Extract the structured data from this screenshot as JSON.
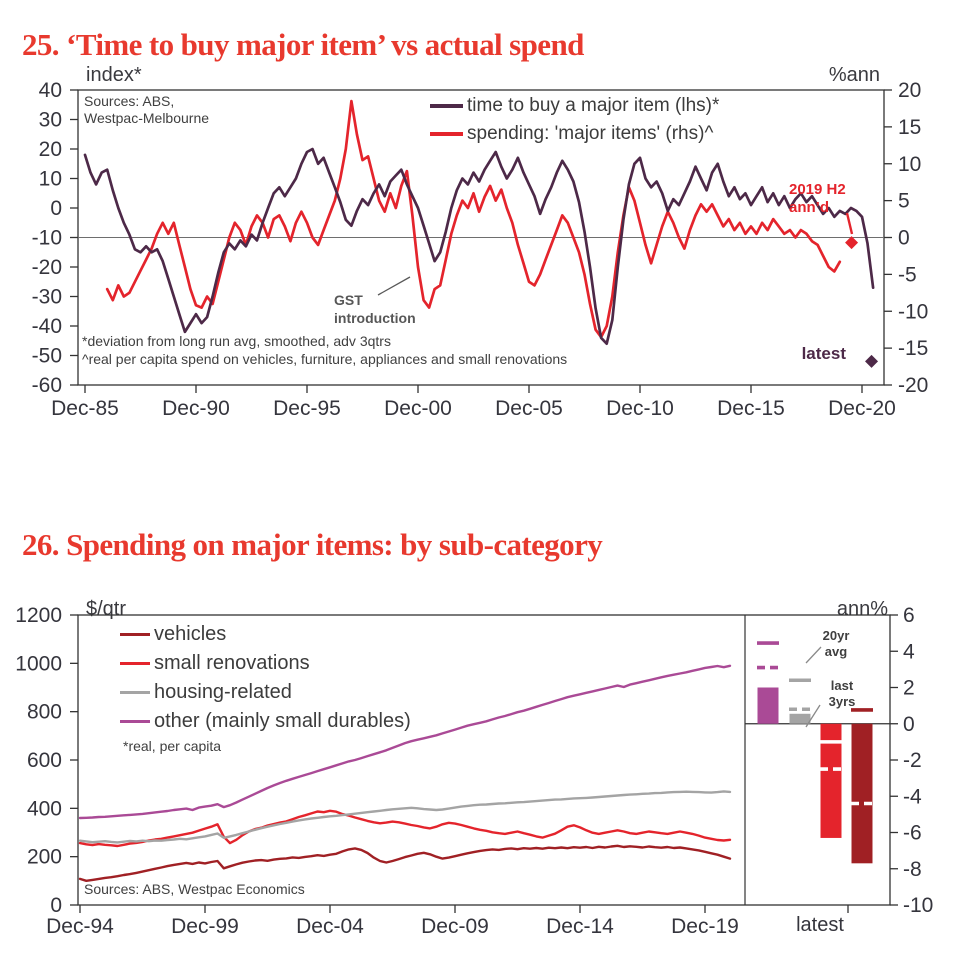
{
  "accent_color": "#e8392e",
  "chart_data": [
    {
      "id": "time-to-buy-vs-actual-spend",
      "type": "line",
      "title": "25. ‘Time to buy major item’ vs actual spend",
      "sources": [
        "Sources: ABS,",
        "Westpac-Melbourne"
      ],
      "footnotes": [
        "*deviation from long run avg, smoothed, adv 3qtrs",
        "^real per capita spend on vehicles, furniture, appliances and small renovations"
      ],
      "left_axis": {
        "label": "index*",
        "range": [
          -60,
          40
        ],
        "ticks": [
          40,
          30,
          20,
          10,
          0,
          -10,
          -20,
          -30,
          -40,
          -50,
          -60
        ]
      },
      "right_axis": {
        "label": "%ann",
        "range": [
          -20,
          20
        ],
        "ticks": [
          20,
          15,
          10,
          5,
          0,
          -5,
          -10,
          -15,
          -20
        ]
      },
      "x_axis": {
        "tick_labels": [
          "Dec-85",
          "Dec-90",
          "Dec-95",
          "Dec-00",
          "Dec-05",
          "Dec-10",
          "Dec-15",
          "Dec-20"
        ],
        "tick_positions": [
          1985.92,
          1990.92,
          1995.92,
          2000.92,
          2005.92,
          2010.92,
          2015.92,
          2020.92
        ]
      },
      "zero_reference_right_axis": 0,
      "series": [
        {
          "name": "time to buy a major item (lhs)*",
          "axis": "left",
          "color": "#4d2948",
          "x_start": 1985.92,
          "x_step_years": 0.25,
          "values": [
            18,
            12,
            8,
            12,
            13,
            6,
            0,
            -5,
            -9,
            -14,
            -15,
            -13,
            -15,
            -14,
            -18,
            -24,
            -30,
            -36,
            -42,
            -39,
            -36,
            -39,
            -37,
            -30,
            -22,
            -15,
            -12,
            -14,
            -11,
            -13,
            -9,
            -11,
            -5,
            0,
            5,
            7,
            4,
            7,
            10,
            15,
            19,
            20,
            15,
            17,
            12,
            7,
            2,
            -4,
            -6,
            -1,
            3,
            1,
            5,
            8,
            4,
            9,
            11,
            13,
            8,
            4,
            0,
            -6,
            -12,
            -18,
            -15,
            -8,
            0,
            6,
            10,
            8,
            12,
            9,
            13,
            16,
            19,
            14,
            10,
            13,
            17,
            12,
            8,
            4,
            -2,
            3,
            7,
            12,
            16,
            13,
            9,
            2,
            -8,
            -20,
            -34,
            -44,
            -46,
            -38,
            -20,
            -4,
            8,
            15,
            17,
            10,
            7,
            9,
            5,
            -1,
            3,
            1,
            5,
            9,
            14,
            10,
            6,
            12,
            15,
            9,
            4,
            7,
            3,
            5,
            1,
            4,
            7,
            2,
            5,
            1,
            4,
            0,
            3,
            5,
            2,
            4,
            1,
            -2,
            0,
            -3,
            -1,
            -2,
            0,
            -1,
            -3,
            -12,
            -27
          ]
        },
        {
          "name": "spending: 'major items' (rhs)^",
          "axis": "right",
          "color": "#e4242c",
          "x_start": 1985.92,
          "x_step_years": 0.25,
          "values": [
            null,
            null,
            null,
            null,
            -7,
            -8.5,
            -6.5,
            -8,
            -7.5,
            -6,
            -4.5,
            -3,
            -1.5,
            0.5,
            2,
            0.5,
            2,
            -1,
            -4,
            -7,
            -9.2,
            -9.5,
            -8,
            -9,
            -6,
            -3,
            0,
            2,
            1,
            -1,
            1.5,
            3,
            2,
            0,
            2.5,
            3,
            1.5,
            -0.5,
            2,
            3.5,
            2,
            0,
            -1,
            1,
            3,
            5,
            8,
            12,
            18.5,
            14,
            10.5,
            11,
            8,
            5,
            3.5,
            6,
            4,
            7,
            9,
            3,
            -4,
            -8.5,
            -9.5,
            -7,
            -6.5,
            -3,
            0.5,
            3,
            5,
            4,
            6,
            3.5,
            5.5,
            7,
            5,
            6.5,
            4,
            2,
            -1,
            -3.5,
            -6,
            -6.5,
            -5,
            -3,
            -1,
            1,
            3,
            2,
            0,
            -2,
            -5,
            -9,
            -12.5,
            -13.5,
            -12,
            -8,
            -2,
            3,
            6.8,
            5,
            2,
            -1,
            -3.5,
            -1,
            1.5,
            3.5,
            2,
            0,
            -1.5,
            1,
            3,
            4.5,
            3.5,
            4.5,
            3,
            1.5,
            2.5,
            1,
            2,
            0.5,
            1.5,
            0.5,
            2,
            1,
            2.5,
            1.5,
            0.5,
            1,
            0,
            1,
            0.5,
            -0.5,
            -1,
            -2.5,
            -4,
            -4.6,
            -3.3
          ]
        }
      ],
      "markers": [
        {
          "name": "2019-h2-annualised",
          "shape": "diamond",
          "color": "#e4242c",
          "axis": "right",
          "x": 2020.45,
          "value": -0.7,
          "label": [
            "2019 H2",
            "ann’d"
          ]
        },
        {
          "name": "latest",
          "shape": "diamond",
          "color": "#4d2948",
          "axis": "left",
          "x": 2021.35,
          "value": -52,
          "label": [
            "latest"
          ]
        }
      ],
      "annotations": [
        {
          "name": "gst-introduction",
          "lines": [
            "GST",
            "introduction"
          ]
        }
      ]
    },
    {
      "id": "spending-major-items-by-subcategory",
      "type": "line+bar",
      "title": "26. Spending on major items: by sub-category",
      "sources": [
        "Sources: ABS, Westpac Economics"
      ],
      "note": "*real, per capita",
      "left_axis": {
        "label": "$/qtr",
        "range": [
          0,
          1200
        ],
        "ticks": [
          1200,
          1000,
          800,
          600,
          400,
          200,
          0
        ]
      },
      "right_axis": {
        "label": "ann%",
        "range": [
          -10,
          6
        ],
        "ticks": [
          6,
          4,
          2,
          0,
          -2,
          -4,
          -6,
          -8,
          -10
        ]
      },
      "x_axis": {
        "tick_labels": [
          "Dec-94",
          "Dec-99",
          "Dec-04",
          "Dec-09",
          "Dec-14",
          "Dec-19"
        ],
        "tick_positions": [
          1994.92,
          1999.92,
          2004.92,
          2009.92,
          2014.92,
          2019.92
        ]
      },
      "series": [
        {
          "name": "vehicles",
          "color": "#a02024",
          "axis": "left",
          "x_start": 1994.92,
          "x_step_years": 0.25,
          "values": [
            108,
            100,
            104,
            108,
            112,
            115,
            119,
            124,
            128,
            133,
            138,
            144,
            150,
            155,
            161,
            166,
            170,
            174,
            170,
            176,
            172,
            178,
            182,
            152,
            160,
            168,
            175,
            180,
            184,
            186,
            183,
            188,
            191,
            193,
            197,
            195,
            199,
            202,
            206,
            203,
            208,
            212,
            222,
            230,
            234,
            228,
            215,
            196,
            182,
            176,
            182,
            190,
            198,
            205,
            212,
            216,
            210,
            200,
            192,
            196,
            202,
            208,
            214,
            219,
            224,
            227,
            230,
            228,
            232,
            234,
            231,
            235,
            233,
            236,
            233,
            237,
            235,
            238,
            235,
            239,
            237,
            240,
            236,
            241,
            238,
            242,
            245,
            240,
            243,
            241,
            238,
            242,
            239,
            237,
            240,
            236,
            238,
            234,
            230,
            226,
            220,
            214,
            208,
            200,
            192
          ]
        },
        {
          "name": "small renovations",
          "color": "#e4242c",
          "axis": "left",
          "x_start": 1994.92,
          "x_step_years": 0.25,
          "values": [
            256,
            251,
            248,
            252,
            249,
            247,
            244,
            249,
            254,
            257,
            261,
            267,
            271,
            274,
            279,
            284,
            289,
            294,
            299,
            308,
            316,
            324,
            334,
            282,
            256,
            270,
            289,
            304,
            314,
            320,
            329,
            335,
            341,
            346,
            355,
            364,
            371,
            379,
            387,
            384,
            390,
            386,
            376,
            370,
            362,
            355,
            348,
            342,
            338,
            341,
            345,
            342,
            337,
            331,
            327,
            321,
            317,
            324,
            334,
            340,
            337,
            331,
            324,
            317,
            311,
            307,
            301,
            297,
            294,
            299,
            304,
            297,
            291,
            284,
            279,
            287,
            295,
            309,
            324,
            330,
            321,
            309,
            299,
            294,
            299,
            304,
            309,
            304,
            297,
            294,
            299,
            304,
            301,
            297,
            294,
            299,
            304,
            299,
            294,
            287,
            279,
            274,
            269,
            267,
            270
          ]
        },
        {
          "name": "housing-related",
          "color": "#a4a4a4",
          "axis": "left",
          "x_start": 1994.92,
          "x_step_years": 0.25,
          "values": [
            266,
            263,
            260,
            262,
            264,
            261,
            259,
            262,
            265,
            263,
            266,
            264,
            267,
            266,
            269,
            271,
            274,
            272,
            276,
            280,
            284,
            290,
            296,
            278,
            284,
            290,
            297,
            304,
            311,
            318,
            324,
            330,
            335,
            340,
            345,
            350,
            354,
            358,
            361,
            364,
            367,
            369,
            372,
            375,
            378,
            381,
            384,
            387,
            390,
            393,
            396,
            398,
            400,
            402,
            400,
            397,
            395,
            393,
            395,
            399,
            403,
            407,
            410,
            413,
            415,
            416,
            418,
            420,
            421,
            423,
            425,
            426,
            428,
            430,
            432,
            434,
            436,
            437,
            439,
            441,
            442,
            443,
            445,
            447,
            449,
            451,
            453,
            455,
            457,
            458,
            460,
            461,
            463,
            464,
            466,
            467,
            468,
            469,
            468,
            467,
            466,
            465,
            467,
            470,
            468
          ]
        },
        {
          "name": "other (mainly small durables)",
          "color": "#aa4a96",
          "axis": "left",
          "x_start": 1994.92,
          "x_step_years": 0.25,
          "values": [
            360,
            361,
            362,
            364,
            365,
            367,
            369,
            371,
            373,
            375,
            377,
            380,
            383,
            386,
            389,
            393,
            396,
            399,
            393,
            403,
            407,
            411,
            417,
            405,
            413,
            424,
            436,
            448,
            460,
            472,
            484,
            495,
            505,
            514,
            522,
            530,
            538,
            546,
            554,
            562,
            570,
            578,
            586,
            594,
            600,
            608,
            616,
            624,
            632,
            640,
            650,
            660,
            670,
            678,
            684,
            690,
            696,
            702,
            710,
            718,
            726,
            734,
            742,
            748,
            754,
            760,
            768,
            776,
            782,
            790,
            798,
            804,
            812,
            820,
            828,
            836,
            844,
            852,
            860,
            866,
            872,
            878,
            884,
            890,
            896,
            902,
            908,
            902,
            912,
            918,
            924,
            930,
            936,
            942,
            948,
            953,
            958,
            963,
            969,
            975,
            981,
            985,
            989,
            984,
            990
          ]
        }
      ],
      "latest_panel": {
        "x_label": "latest",
        "legend_20yr": [
          "20yr",
          "avg"
        ],
        "legend_3yrs": [
          "last",
          "3yrs"
        ],
        "bars": [
          {
            "name": "other (mainly small durables)",
            "color": "#aa4a96",
            "latest": 2.0,
            "avg_20yr": 4.45,
            "last_3yrs": 3.1
          },
          {
            "name": "housing-related",
            "color": "#a4a4a4",
            "latest": 0.55,
            "avg_20yr": 2.4,
            "last_3yrs": 0.8
          },
          {
            "name": "small renovations",
            "color": "#e4242c",
            "latest": -6.3,
            "avg_20yr": -1.0,
            "last_3yrs": -2.5
          },
          {
            "name": "vehicles",
            "color": "#a02024",
            "latest": -7.7,
            "avg_20yr": 0.76,
            "last_3yrs": -4.4
          }
        ]
      }
    }
  ]
}
